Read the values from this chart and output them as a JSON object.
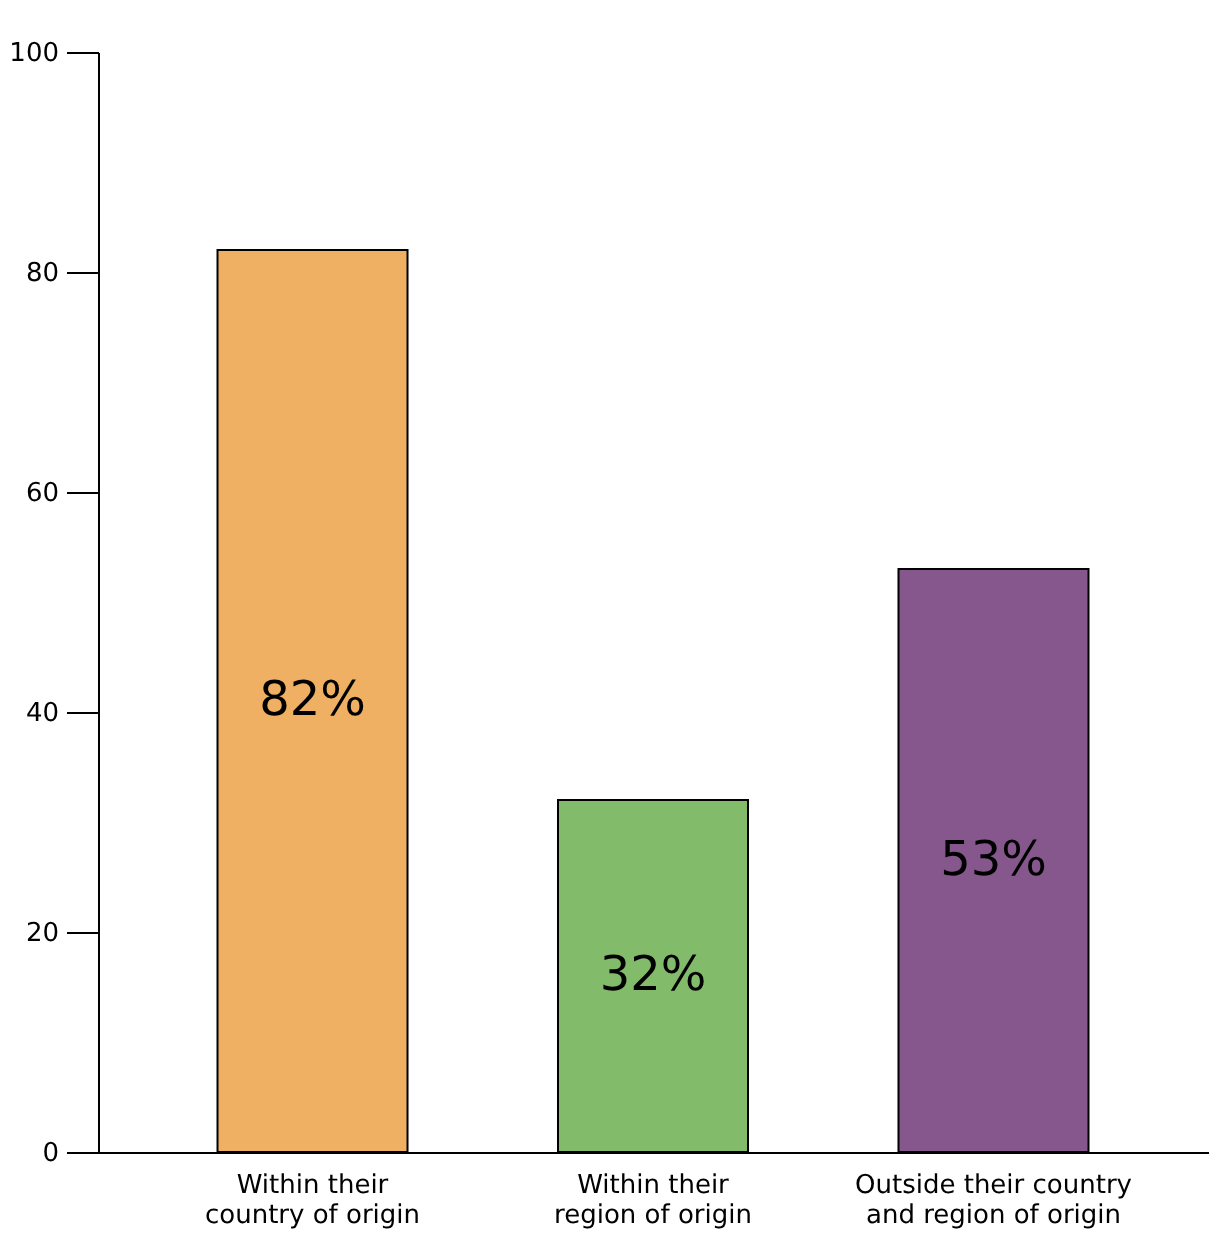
{
  "chart_data": {
    "type": "bar",
    "categories": [
      "Within their country of origin",
      "Within their region of origin",
      "Outside their country and region of origin"
    ],
    "values": [
      82,
      32,
      53
    ],
    "colors": [
      "#efb063",
      "#82bb6a",
      "#85578c"
    ],
    "value_labels": [
      "82%",
      "32%",
      "53%"
    ],
    "ylim": [
      0,
      100
    ],
    "yticks": [
      0,
      20,
      40,
      60,
      80,
      100
    ]
  }
}
